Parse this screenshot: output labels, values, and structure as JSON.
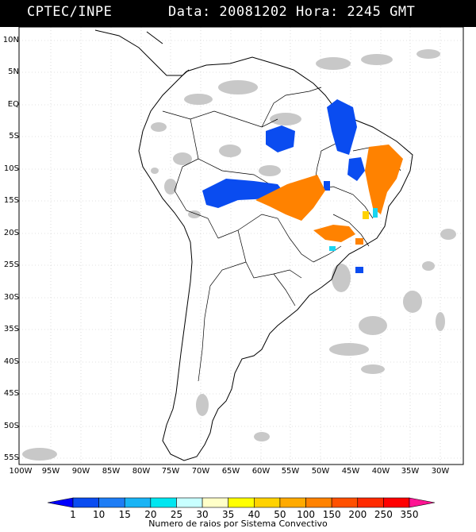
{
  "header": {
    "org": "CPTEC/INPE",
    "date_time": "Data: 20081202 Hora: 2245 GMT"
  },
  "map": {
    "lat_labels": [
      "10N",
      "5N",
      "EQ",
      "5S",
      "10S",
      "15S",
      "20S",
      "25S",
      "30S",
      "35S",
      "40S",
      "45S",
      "50S",
      "55S"
    ],
    "lon_labels": [
      "100W",
      "95W",
      "90W",
      "85W",
      "80W",
      "75W",
      "70W",
      "65W",
      "60W",
      "55W",
      "50W",
      "45W",
      "40W",
      "35W",
      "30W"
    ],
    "colors": {
      "land_outline": "#000000",
      "grid": "#bfbfbf",
      "cloud_gray": "#c8c8c8"
    }
  },
  "colorbar": {
    "title": "Numero de raios por Sistema Convectivo",
    "labels": [
      "1",
      "10",
      "15",
      "20",
      "25",
      "30",
      "35",
      "40",
      "50",
      "100",
      "150",
      "200",
      "250",
      "350"
    ],
    "colors": [
      "#0000ff",
      "#0a4cf0",
      "#1e7df5",
      "#19b4f5",
      "#00e6f0",
      "#c8ffff",
      "#ffffc8",
      "#ffff00",
      "#ffd200",
      "#ffaa00",
      "#ff8200",
      "#ff5000",
      "#ff2a00",
      "#ff0000",
      "#ff1493"
    ]
  }
}
